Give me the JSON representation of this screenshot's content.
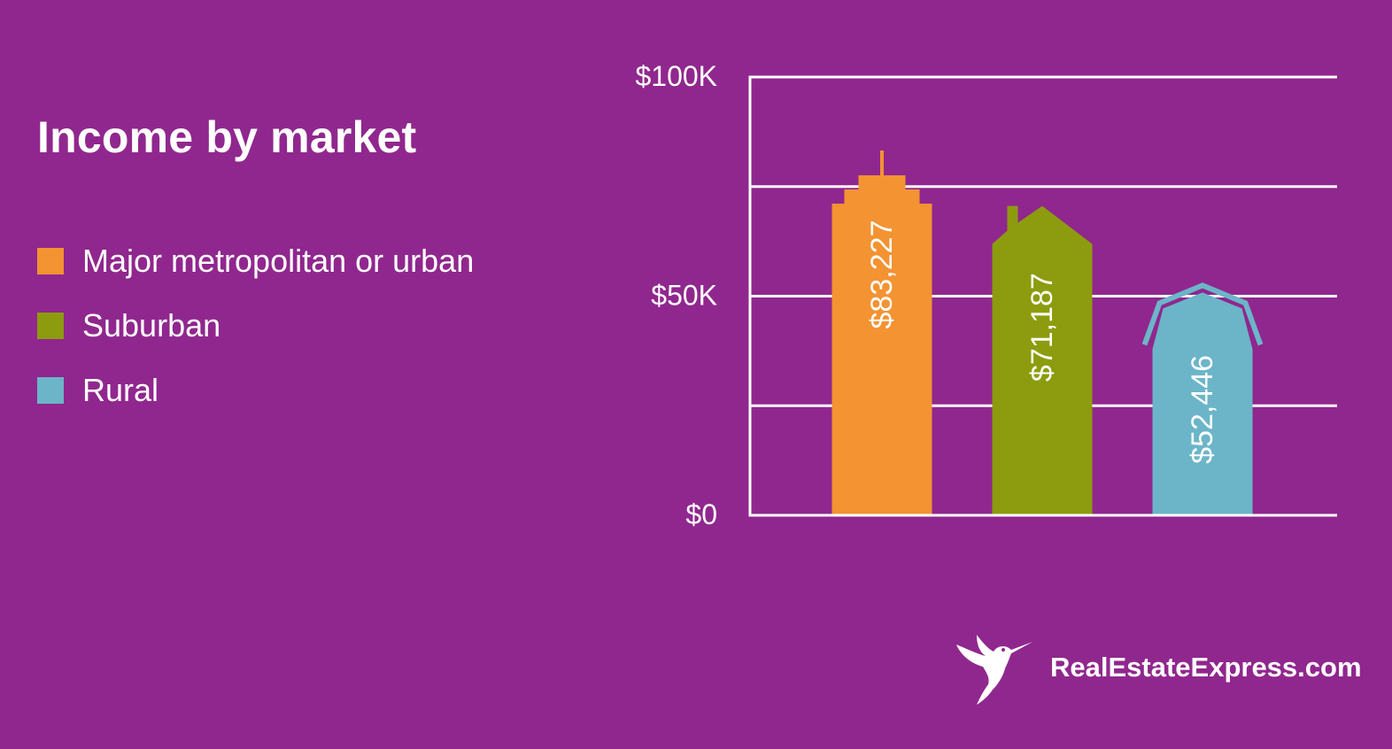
{
  "chart_data": {
    "type": "bar",
    "title": "Income by market",
    "categories": [
      "Major metropolitan or urban",
      "Suburban",
      "Rural"
    ],
    "values": [
      83227,
      71187,
      52446
    ],
    "value_labels": [
      "$83,227",
      "$71,187",
      "$52,446"
    ],
    "colors": [
      "#f39332",
      "#8c9c0e",
      "#6cb5c8"
    ],
    "ylim": [
      0,
      100000
    ],
    "y_ticks": [
      0,
      25000,
      50000,
      75000,
      100000
    ],
    "y_tick_labels": [
      {
        "value": 100000,
        "label": "$100K"
      },
      {
        "value": 50000,
        "label": "$50K"
      },
      {
        "value": 0,
        "label": "$0"
      }
    ],
    "grid": true,
    "legend_placement": "left",
    "bar_shapes": [
      "skyscraper",
      "house",
      "barn"
    ]
  },
  "brand": {
    "text": "RealEstateExpress.com",
    "icon": "hummingbird-icon"
  }
}
